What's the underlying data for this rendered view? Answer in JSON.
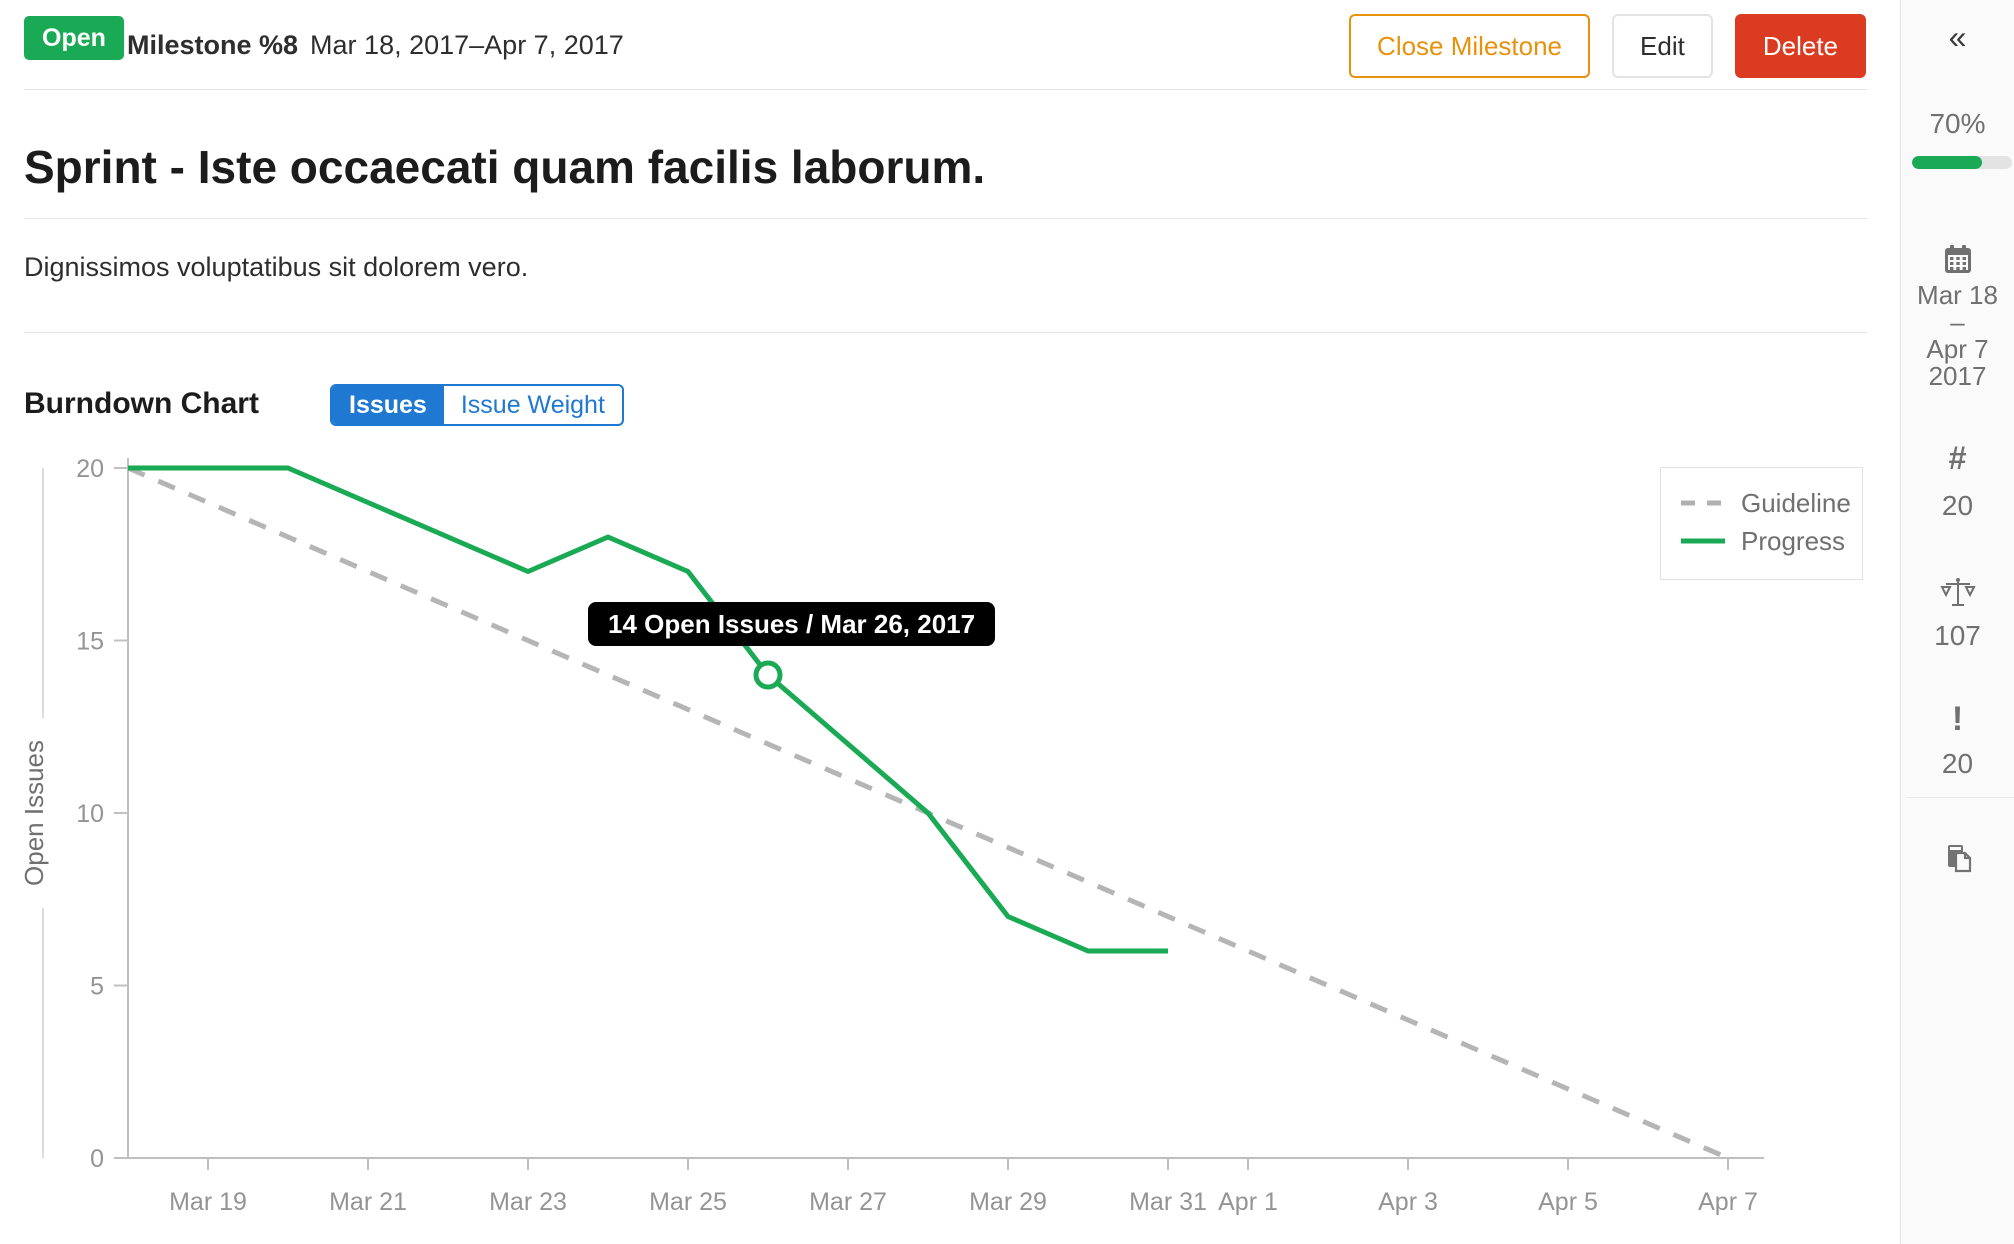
{
  "header": {
    "status_badge": "Open",
    "milestone_label": "Milestone %8",
    "date_range": "Mar 18, 2017–Apr 7, 2017",
    "close_button": "Close Milestone",
    "edit_button": "Edit",
    "delete_button": "Delete"
  },
  "milestone": {
    "title": "Sprint - Iste occaecati quam facilis laborum.",
    "description": "Dignissimos voluptatibus sit dolorem vero."
  },
  "burndown": {
    "heading": "Burndown Chart",
    "toggle_issues": "Issues",
    "toggle_issue_weight": "Issue Weight",
    "active_toggle": "Issues"
  },
  "tooltip": {
    "text": "14 Open Issues / Mar 26, 2017"
  },
  "sidebar": {
    "collapse_icon": "«",
    "percent_label": "70%",
    "progress_percent": 70,
    "date_start": "Mar 18",
    "date_separator": "–",
    "date_end": "Apr 7",
    "date_year": "2017",
    "hash_symbol": "#",
    "issues_count": "20",
    "weight_total": "107",
    "bang_symbol": "!",
    "open_issues_count": "20",
    "icons": [
      "collapse-icon",
      "calendar-icon",
      "hash-icon",
      "scale-icon",
      "exclamation-icon",
      "clipboard-icon"
    ]
  },
  "chart_data": {
    "type": "line",
    "title": "",
    "xlabel": "",
    "ylabel": "Open Issues",
    "ylim": [
      0,
      20
    ],
    "y_ticks": [
      0,
      5,
      10,
      15,
      20
    ],
    "x_start_date": "Mar 18, 2017",
    "x_end_date": "Apr 7, 2017",
    "days_total": 20,
    "grid": false,
    "legend_position": "top-right",
    "x_tick_labels": [
      {
        "label": "Mar 19",
        "day": 1
      },
      {
        "label": "Mar 21",
        "day": 3
      },
      {
        "label": "Mar 23",
        "day": 5
      },
      {
        "label": "Mar 25",
        "day": 7
      },
      {
        "label": "Mar 27",
        "day": 9
      },
      {
        "label": "Mar 29",
        "day": 11
      },
      {
        "label": "Mar 31",
        "day": 13
      },
      {
        "label": "Apr 1",
        "day": 14
      },
      {
        "label": "Apr 3",
        "day": 16
      },
      {
        "label": "Apr 5",
        "day": 18
      },
      {
        "label": "Apr 7",
        "day": 20
      }
    ],
    "series": [
      {
        "name": "Guideline",
        "style": "dashed",
        "color": "#b5b5b5",
        "points": [
          [
            0,
            20
          ],
          [
            20,
            0
          ]
        ]
      },
      {
        "name": "Progress",
        "style": "solid",
        "color": "#1aaa55",
        "points": [
          [
            0,
            20
          ],
          [
            1,
            20
          ],
          [
            2,
            20
          ],
          [
            3,
            19
          ],
          [
            4,
            18
          ],
          [
            5,
            17
          ],
          [
            6,
            18
          ],
          [
            7,
            17
          ],
          [
            8,
            14
          ],
          [
            9,
            12
          ],
          [
            10,
            10
          ],
          [
            11,
            7
          ],
          [
            12,
            6
          ],
          [
            13,
            6
          ]
        ]
      }
    ],
    "marker": {
      "day": 8,
      "value": 14,
      "date": "Mar 26, 2017",
      "open_issues": 14
    }
  },
  "colors": {
    "green": "#1aaa55",
    "blue": "#1f78d1",
    "red": "#db3b21",
    "orange": "#e8910c",
    "axis_gray": "#c0c0c0",
    "tick_text_gray": "#949494",
    "legend_text_gray": "#707070",
    "tooltip_bg": "#000000"
  }
}
